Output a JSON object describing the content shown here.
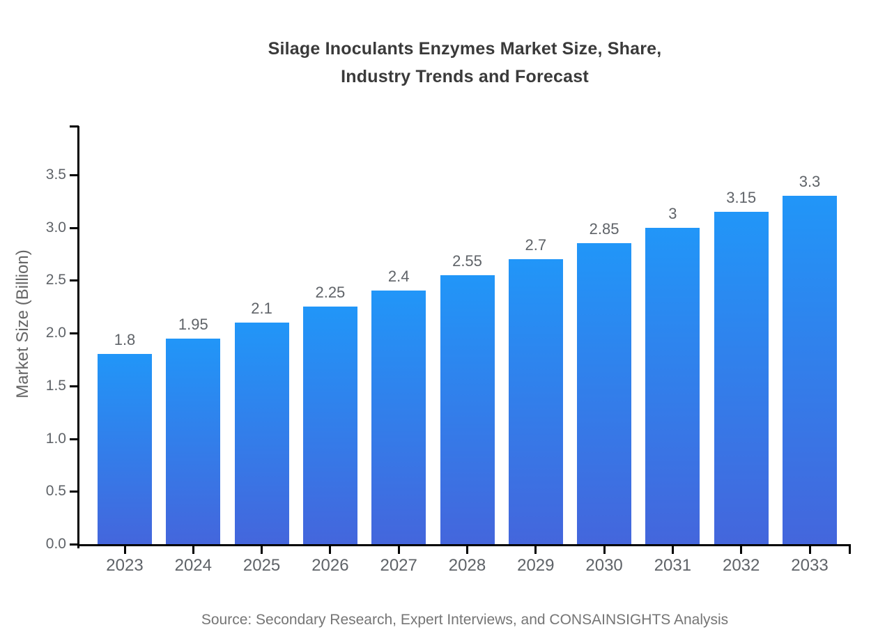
{
  "chart_data": {
    "type": "bar",
    "title": "Silage Inoculants Enzymes Market Size, Share, Industry Trends and Forecast",
    "title_lines": [
      "Silage Inoculants Enzymes Market Size, Share,",
      "Industry Trends and Forecast"
    ],
    "categories": [
      "2023",
      "2024",
      "2025",
      "2026",
      "2027",
      "2028",
      "2029",
      "2030",
      "2031",
      "2032",
      "2033"
    ],
    "values": [
      1.8,
      1.95,
      2.1,
      2.25,
      2.4,
      2.55,
      2.7,
      2.85,
      3,
      3.15,
      3.3
    ],
    "value_labels": [
      "1.8",
      "1.95",
      "2.1",
      "2.25",
      "2.4",
      "2.55",
      "2.7",
      "2.85",
      "3",
      "3.15",
      "3.3"
    ],
    "xlabel": "",
    "ylabel": "Market Size (Billion)",
    "ylim": [
      0,
      3.96
    ],
    "y_ticks": [
      0,
      0.5,
      1,
      1.5,
      2,
      2.5,
      3,
      3.5
    ],
    "y_tick_labels": [
      "0.0",
      "0.5",
      "1.0",
      "1.5",
      "2.0",
      "2.5",
      "3.0",
      "3.5"
    ],
    "grid": false,
    "legend": null,
    "source_note": "Source: Secondary Research, Expert Interviews, and CONSAINSIGHTS Analysis",
    "colors": {
      "bar_gradient_top": "#2196f8",
      "bar_gradient_bottom": "#4466dc",
      "axis": "#000000",
      "title_text": "#3a3a3a",
      "tick_text": "#5f6368",
      "value_label_text": "#5f6368",
      "source_text": "#757575"
    }
  }
}
